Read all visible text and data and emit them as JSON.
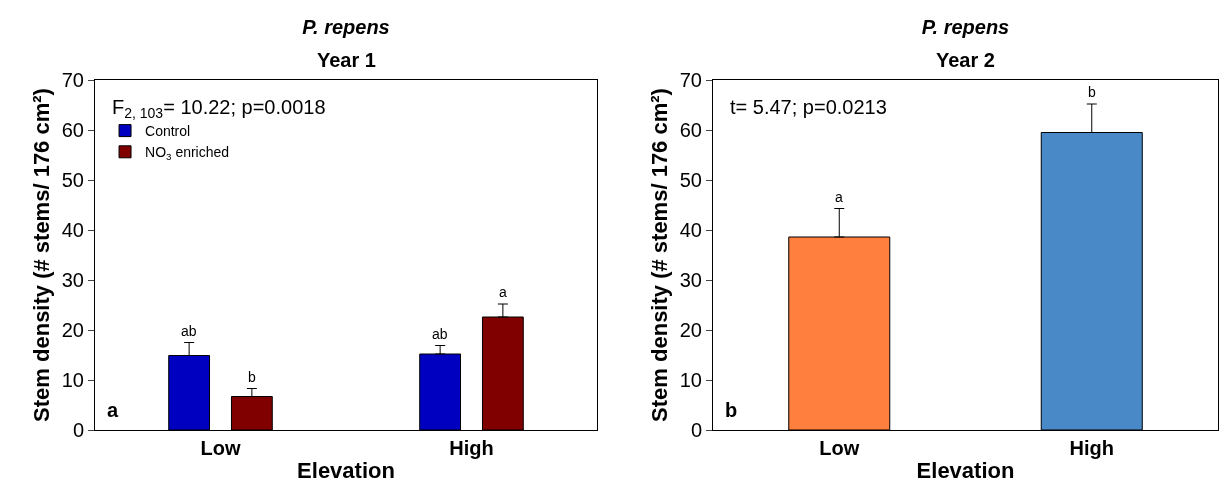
{
  "chart_data": [
    {
      "type": "bar",
      "title": "P. repens",
      "subtitle": "Year 1",
      "xlabel": "Elevation",
      "ylabel": "Stem density (# stems/ 176 cm²)",
      "categories": [
        "Low",
        "High"
      ],
      "series": [
        {
          "name": "Control",
          "color": "#0000c0",
          "values": [
            14.9,
            15.2
          ],
          "errors": [
            [
              14.9,
              17.5
            ],
            [
              15.2,
              16.9
            ]
          ],
          "value_labels": [
            "ab",
            "ab"
          ]
        },
        {
          "name": "NO$_{3}$ enriched",
          "color": "#800000",
          "values": [
            6.7,
            22.6
          ],
          "errors": [
            [
              6.7,
              8.3
            ],
            [
              22.6,
              25.2
            ]
          ],
          "value_labels": [
            "b",
            "a"
          ]
        }
      ],
      "ylim": [
        0,
        70
      ],
      "yticks": [
        0,
        10,
        20,
        30,
        40,
        50,
        60,
        70
      ],
      "grid": false,
      "legend": "top left",
      "annotations": [
        "F$_{2, 103}$= 10.22; p=0.0018",
        "a"
      ]
    },
    {
      "type": "bar",
      "title": "P. repens",
      "subtitle": "Year 2",
      "xlabel": "Elevation",
      "ylabel": "Stem density (# stems/ 176 cm²)",
      "categories": [
        "Low",
        "High"
      ],
      "series": [
        {
          "colors": [
            "#ff7f3f",
            "#4a89c8"
          ],
          "values": [
            38.6,
            59.5
          ],
          "errors": [
            [
              38.6,
              44.3
            ],
            [
              59.5,
              65.2
            ]
          ],
          "value_labels": [
            "a",
            "b"
          ]
        }
      ],
      "ylim": [
        0,
        70
      ],
      "yticks": [
        0,
        10,
        20,
        30,
        40,
        50,
        60,
        70
      ],
      "grid": false,
      "legend": false,
      "annotations": [
        "t= 5.47; p=0.0213",
        "b"
      ]
    }
  ]
}
